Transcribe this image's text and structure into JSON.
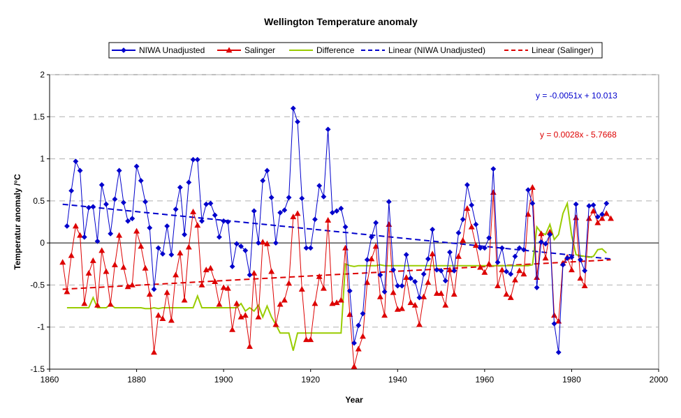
{
  "chart_data": {
    "type": "line",
    "title": "Wellington Temperature anomaly",
    "xlabel": "Year",
    "ylabel": "Temperatur anomaly /°C",
    "xlim": [
      1860,
      2000
    ],
    "ylim": [
      -1.5,
      2
    ],
    "xticks": [
      "1860",
      "1880",
      "1900",
      "1920",
      "1940",
      "1960",
      "1980",
      "2000"
    ],
    "yticks": [
      "2",
      "1.5",
      "1",
      "0.5",
      "0",
      "-0.5",
      "-1",
      "-1.5"
    ],
    "grid": "horizontal dashed",
    "legend_position": "top",
    "equations": {
      "niwa": "y = -0.0051x + 10.013",
      "salinger": "y = 0.0028x - 5.7668"
    },
    "series": [
      {
        "name": "NIWA Unadjusted",
        "color": "#0000cc",
        "marker": "diamond",
        "x": [
          1864,
          1865,
          1866,
          1867,
          1868,
          1869,
          1870,
          1871,
          1872,
          1873,
          1874,
          1875,
          1876,
          1877,
          1878,
          1879,
          1880,
          1881,
          1882,
          1883,
          1884,
          1885,
          1886,
          1887,
          1888,
          1889,
          1890,
          1891,
          1892,
          1893,
          1894,
          1895,
          1896,
          1897,
          1898,
          1899,
          1900,
          1901,
          1902,
          1903,
          1904,
          1905,
          1906,
          1907,
          1908,
          1909,
          1910,
          1911,
          1912,
          1913,
          1914,
          1915,
          1916,
          1917,
          1918,
          1919,
          1920,
          1921,
          1922,
          1923,
          1924,
          1925,
          1926,
          1927,
          1928,
          1929,
          1930,
          1931,
          1932,
          1933,
          1934,
          1935,
          1936,
          1937,
          1938,
          1939,
          1940,
          1941,
          1942,
          1943,
          1944,
          1945,
          1946,
          1947,
          1948,
          1949,
          1950,
          1951,
          1952,
          1953,
          1954,
          1955,
          1956,
          1957,
          1958,
          1959,
          1960,
          1961,
          1962,
          1963,
          1964,
          1965,
          1966,
          1967,
          1968,
          1969,
          1970,
          1971,
          1972,
          1973,
          1974,
          1975,
          1976,
          1977,
          1978,
          1979,
          1980,
          1981,
          1982,
          1983,
          1984,
          1985,
          1986,
          1987,
          1988
        ],
        "y": [
          0.2,
          0.62,
          0.97,
          0.86,
          0.07,
          0.42,
          0.43,
          0.02,
          0.69,
          0.46,
          0.11,
          0.52,
          0.86,
          0.48,
          0.26,
          0.29,
          0.91,
          0.74,
          0.49,
          0.18,
          -0.55,
          -0.06,
          -0.13,
          0.2,
          -0.14,
          0.4,
          0.66,
          0.1,
          0.72,
          0.99,
          0.99,
          0.26,
          0.46,
          0.47,
          0.33,
          0.07,
          0.26,
          0.25,
          -0.28,
          -0.01,
          -0.04,
          -0.09,
          -0.38,
          0.38,
          0.0,
          0.74,
          0.86,
          0.54,
          0.0,
          0.36,
          0.39,
          0.54,
          1.6,
          1.44,
          0.53,
          -0.06,
          -0.06,
          0.28,
          0.68,
          0.55,
          1.35,
          0.36,
          0.38,
          0.41,
          0.19,
          -0.57,
          -1.19,
          -0.98,
          -0.84,
          -0.2,
          0.07,
          0.24,
          -0.38,
          -0.58,
          0.49,
          -0.32,
          -0.51,
          -0.51,
          -0.14,
          -0.42,
          -0.46,
          -0.65,
          -0.37,
          -0.19,
          0.16,
          -0.32,
          -0.33,
          -0.45,
          -0.11,
          -0.33,
          0.12,
          0.28,
          0.69,
          0.45,
          0.22,
          -0.06,
          -0.06,
          0.06,
          0.88,
          -0.23,
          -0.06,
          -0.34,
          -0.37,
          -0.16,
          -0.06,
          -0.08,
          0.63,
          0.47,
          -0.53,
          0.01,
          -0.01,
          0.1,
          -0.96,
          -1.3,
          -0.26,
          -0.18,
          -0.17,
          0.46,
          -0.2,
          -0.33,
          0.44,
          0.45,
          0.31,
          0.34,
          0.47
        ]
      },
      {
        "name": "Salinger",
        "color": "#dd0000",
        "marker": "triangle",
        "x": [
          1863,
          1864,
          1865,
          1866,
          1867,
          1868,
          1869,
          1870,
          1871,
          1872,
          1873,
          1874,
          1875,
          1876,
          1877,
          1878,
          1879,
          1880,
          1881,
          1882,
          1883,
          1884,
          1885,
          1886,
          1887,
          1888,
          1889,
          1890,
          1891,
          1892,
          1893,
          1894,
          1895,
          1896,
          1897,
          1898,
          1899,
          1900,
          1901,
          1902,
          1903,
          1904,
          1905,
          1906,
          1907,
          1908,
          1909,
          1910,
          1911,
          1912,
          1913,
          1914,
          1915,
          1916,
          1917,
          1918,
          1919,
          1920,
          1921,
          1922,
          1923,
          1924,
          1925,
          1926,
          1927,
          1928,
          1929,
          1930,
          1931,
          1932,
          1933,
          1934,
          1935,
          1936,
          1937,
          1938,
          1939,
          1940,
          1941,
          1942,
          1943,
          1944,
          1945,
          1946,
          1947,
          1948,
          1949,
          1950,
          1951,
          1952,
          1953,
          1954,
          1955,
          1956,
          1957,
          1958,
          1959,
          1960,
          1961,
          1962,
          1963,
          1964,
          1965,
          1966,
          1967,
          1968,
          1969,
          1970,
          1971,
          1972,
          1973,
          1974,
          1975,
          1976,
          1977,
          1978,
          1979,
          1980,
          1981,
          1982,
          1983,
          1984,
          1985,
          1986,
          1987,
          1988,
          1989
        ],
        "y": [
          -0.23,
          -0.58,
          -0.15,
          0.2,
          0.09,
          -0.72,
          -0.36,
          -0.21,
          -0.74,
          -0.09,
          -0.34,
          -0.73,
          -0.26,
          0.09,
          -0.29,
          -0.52,
          -0.5,
          0.14,
          -0.04,
          -0.3,
          -0.61,
          -1.3,
          -0.86,
          -0.9,
          -0.59,
          -0.92,
          -0.38,
          -0.12,
          -0.68,
          -0.05,
          0.37,
          0.21,
          -0.5,
          -0.32,
          -0.3,
          -0.46,
          -0.73,
          -0.53,
          -0.54,
          -1.03,
          -0.72,
          -0.88,
          -0.86,
          -1.23,
          -0.36,
          -0.88,
          0.01,
          -0.01,
          -0.34,
          -0.97,
          -0.73,
          -0.68,
          -0.48,
          0.31,
          0.35,
          -0.55,
          -1.15,
          -1.15,
          -0.72,
          -0.4,
          -0.54,
          0.27,
          -0.72,
          -0.71,
          -0.68,
          -0.06,
          -0.85,
          -1.47,
          -1.26,
          -1.11,
          -0.47,
          -0.19,
          -0.04,
          -0.64,
          -0.86,
          0.22,
          -0.59,
          -0.79,
          -0.78,
          -0.41,
          -0.71,
          -0.74,
          -0.97,
          -0.64,
          -0.47,
          -0.13,
          -0.6,
          -0.6,
          -0.74,
          -0.32,
          -0.61,
          -0.16,
          0.03,
          0.41,
          0.19,
          -0.03,
          -0.29,
          -0.35,
          -0.25,
          0.6,
          -0.51,
          -0.32,
          -0.61,
          -0.65,
          -0.44,
          -0.33,
          -0.37,
          0.34,
          0.66,
          -0.41,
          0.11,
          -0.18,
          0.13,
          -0.86,
          -0.93,
          -0.24,
          -0.17,
          -0.32,
          0.3,
          -0.42,
          -0.51,
          0.29,
          0.38,
          0.24,
          0.29,
          0.35,
          0.29
        ]
      },
      {
        "name": "Difference",
        "color": "#99cc00",
        "marker": "none",
        "x": [
          1864,
          1865,
          1866,
          1867,
          1868,
          1869,
          1870,
          1871,
          1872,
          1873,
          1874,
          1875,
          1876,
          1877,
          1878,
          1879,
          1880,
          1881,
          1882,
          1883,
          1884,
          1885,
          1886,
          1887,
          1888,
          1889,
          1890,
          1891,
          1892,
          1893,
          1894,
          1895,
          1896,
          1897,
          1898,
          1899,
          1900,
          1901,
          1902,
          1903,
          1904,
          1905,
          1906,
          1907,
          1908,
          1909,
          1910,
          1911,
          1912,
          1913,
          1914,
          1915,
          1916,
          1917,
          1918,
          1919,
          1920,
          1921,
          1922,
          1923,
          1924,
          1925,
          1926,
          1927,
          1928,
          1929,
          1930,
          1931,
          1932,
          1933,
          1934,
          1935,
          1936,
          1937,
          1938,
          1939,
          1940,
          1941,
          1942,
          1943,
          1944,
          1945,
          1946,
          1947,
          1948,
          1949,
          1950,
          1951,
          1952,
          1953,
          1954,
          1955,
          1956,
          1957,
          1958,
          1959,
          1960,
          1961,
          1962,
          1963,
          1964,
          1965,
          1966,
          1967,
          1968,
          1969,
          1970,
          1971,
          1972,
          1973,
          1974,
          1975,
          1976,
          1977,
          1978,
          1979,
          1980,
          1981,
          1982,
          1983,
          1984,
          1985,
          1986,
          1987,
          1988
        ],
        "y": [
          -0.77,
          -0.77,
          -0.77,
          -0.77,
          -0.77,
          -0.77,
          -0.65,
          -0.77,
          -0.77,
          -0.77,
          -0.73,
          -0.77,
          -0.77,
          -0.77,
          -0.77,
          -0.77,
          -0.77,
          -0.77,
          -0.78,
          -0.78,
          -0.77,
          -0.78,
          -0.77,
          -0.77,
          -0.77,
          -0.77,
          -0.77,
          -0.77,
          -0.77,
          -0.77,
          -0.63,
          -0.77,
          -0.77,
          -0.77,
          -0.77,
          -0.77,
          -0.77,
          -0.77,
          -0.77,
          -0.77,
          -0.72,
          -0.81,
          -0.77,
          -0.81,
          -0.74,
          -0.88,
          -0.75,
          -0.88,
          -0.97,
          -1.07,
          -1.07,
          -1.07,
          -1.28,
          -1.07,
          -1.07,
          -1.07,
          -1.07,
          -1.07,
          -1.07,
          -1.07,
          -1.07,
          -1.07,
          -1.07,
          -1.07,
          -0.25,
          -0.27,
          -0.28,
          -0.27,
          -0.27,
          -0.27,
          -0.27,
          -0.27,
          -0.26,
          -0.27,
          -0.27,
          -0.27,
          -0.27,
          -0.27,
          -0.27,
          -0.27,
          -0.27,
          -0.27,
          -0.27,
          -0.27,
          -0.27,
          -0.27,
          -0.27,
          -0.27,
          -0.27,
          -0.27,
          -0.27,
          -0.27,
          -0.27,
          -0.27,
          -0.27,
          -0.27,
          -0.27,
          -0.27,
          -0.27,
          -0.27,
          -0.27,
          -0.27,
          -0.27,
          -0.27,
          -0.27,
          -0.27,
          -0.27,
          -0.26,
          0.19,
          0.12,
          0.1,
          0.22,
          0.04,
          0.1,
          0.35,
          0.47,
          0.09,
          -0.14,
          -0.15,
          -0.16,
          -0.17,
          -0.16,
          -0.08,
          -0.07,
          -0.12
        ]
      },
      {
        "name": "Linear (NIWA Unadjusted)",
        "color": "#0000cc",
        "style": "dashed",
        "x": [
          1863,
          1989
        ],
        "y": [
          0.46,
          -0.19
        ]
      },
      {
        "name": "Linear (Salinger)",
        "color": "#dd0000",
        "style": "dashed",
        "x": [
          1863,
          1989
        ],
        "y": [
          -0.55,
          -0.2
        ]
      }
    ]
  }
}
